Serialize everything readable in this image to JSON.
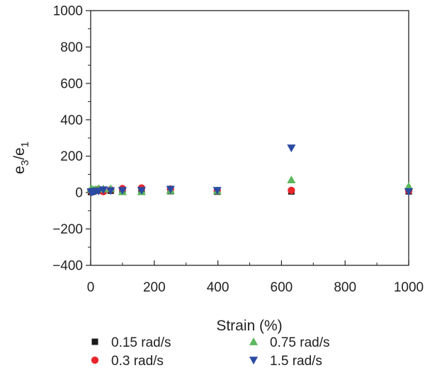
{
  "chart_data": {
    "type": "scatter",
    "xlabel": "Strain (%)",
    "ylabel_main": "e",
    "ylabel_sub1": "3",
    "ylabel_slash": "/e",
    "ylabel_sub2": "1",
    "xlim": [
      0,
      1000
    ],
    "ylim": [
      -400,
      1000
    ],
    "xticks": [
      0,
      200,
      400,
      600,
      800,
      1000
    ],
    "yticks": [
      -400,
      -200,
      0,
      200,
      400,
      600,
      800,
      1000
    ],
    "grid": false,
    "legend_position": "bottom",
    "series": [
      {
        "name": "0.15 rad/s",
        "marker": "square",
        "color": "#1a1a1a",
        "points": [
          [
            1,
            3
          ],
          [
            2,
            6
          ],
          [
            4,
            5
          ],
          [
            6,
            8
          ],
          [
            10,
            10
          ],
          [
            16,
            10
          ],
          [
            25,
            10
          ],
          [
            40,
            10
          ],
          [
            63,
            10
          ],
          [
            100,
            10
          ],
          [
            160,
            10
          ],
          [
            251,
            8
          ],
          [
            398,
            5
          ],
          [
            631,
            6
          ],
          [
            1000,
            6
          ]
        ]
      },
      {
        "name": "0.3 rad/s",
        "marker": "circle",
        "color": "#e8262b",
        "points": [
          [
            1,
            8
          ],
          [
            2,
            10
          ],
          [
            4,
            12
          ],
          [
            6,
            10
          ],
          [
            10,
            12
          ],
          [
            16,
            14
          ],
          [
            25,
            18
          ],
          [
            40,
            5
          ],
          [
            63,
            16
          ],
          [
            100,
            22
          ],
          [
            160,
            25
          ],
          [
            251,
            20
          ],
          [
            398,
            10
          ],
          [
            631,
            12
          ],
          [
            1000,
            10
          ]
        ]
      },
      {
        "name": "0.75 rad/s",
        "marker": "triangle-up",
        "color": "#5cb85c",
        "points": [
          [
            1,
            20
          ],
          [
            2,
            20
          ],
          [
            4,
            18
          ],
          [
            6,
            16
          ],
          [
            10,
            15
          ],
          [
            16,
            18
          ],
          [
            25,
            22
          ],
          [
            40,
            20
          ],
          [
            63,
            22
          ],
          [
            100,
            5
          ],
          [
            160,
            5
          ],
          [
            251,
            12
          ],
          [
            398,
            10
          ],
          [
            631,
            70
          ],
          [
            1000,
            35
          ]
        ]
      },
      {
        "name": "1.5 rad/s",
        "marker": "triangle-down",
        "color": "#2b4ba3",
        "points": [
          [
            1,
            2
          ],
          [
            2,
            4
          ],
          [
            4,
            3
          ],
          [
            6,
            5
          ],
          [
            10,
            6
          ],
          [
            16,
            8
          ],
          [
            25,
            8
          ],
          [
            40,
            15
          ],
          [
            63,
            10
          ],
          [
            100,
            12
          ],
          [
            160,
            12
          ],
          [
            251,
            18
          ],
          [
            398,
            12
          ],
          [
            631,
            245
          ],
          [
            1000,
            5
          ]
        ]
      }
    ]
  }
}
